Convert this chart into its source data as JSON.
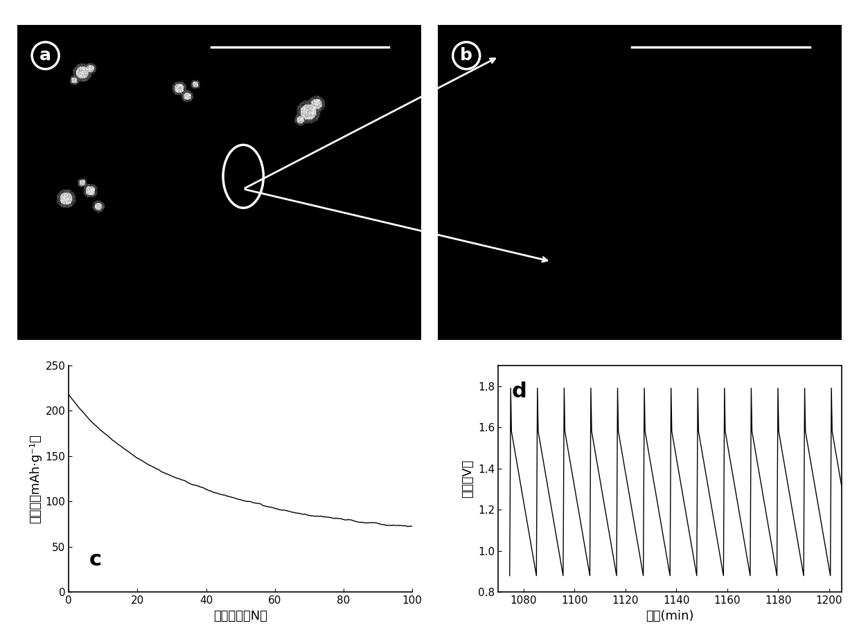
{
  "bg_color": "#000000",
  "fig_bg": "#ffffff",
  "panel_a_label": "a",
  "panel_b_label": "b",
  "panel_c_label": "c",
  "panel_d_label": "d",
  "panel_c_xlabel": "循环次数（N）",
  "panel_c_ylabel": "比容量（mAh·g⁻¹）",
  "panel_c_xlim": [
    0,
    100
  ],
  "panel_c_ylim": [
    0,
    250
  ],
  "panel_c_xticks": [
    0,
    20,
    40,
    60,
    80,
    100
  ],
  "panel_c_yticks": [
    0,
    50,
    100,
    150,
    200,
    250
  ],
  "panel_d_xlabel": "时间(min)",
  "panel_d_ylabel": "电压（V）",
  "panel_d_xlim": [
    1070,
    1205
  ],
  "panel_d_ylim": [
    0.8,
    1.9
  ],
  "panel_d_xticks": [
    1080,
    1100,
    1120,
    1140,
    1160,
    1180,
    1200
  ],
  "panel_d_yticks": [
    0.8,
    1.0,
    1.2,
    1.4,
    1.6,
    1.8
  ],
  "line_color": "#000000",
  "label_fontsize": 13,
  "tick_fontsize": 11,
  "panel_label_fontsize": 18
}
